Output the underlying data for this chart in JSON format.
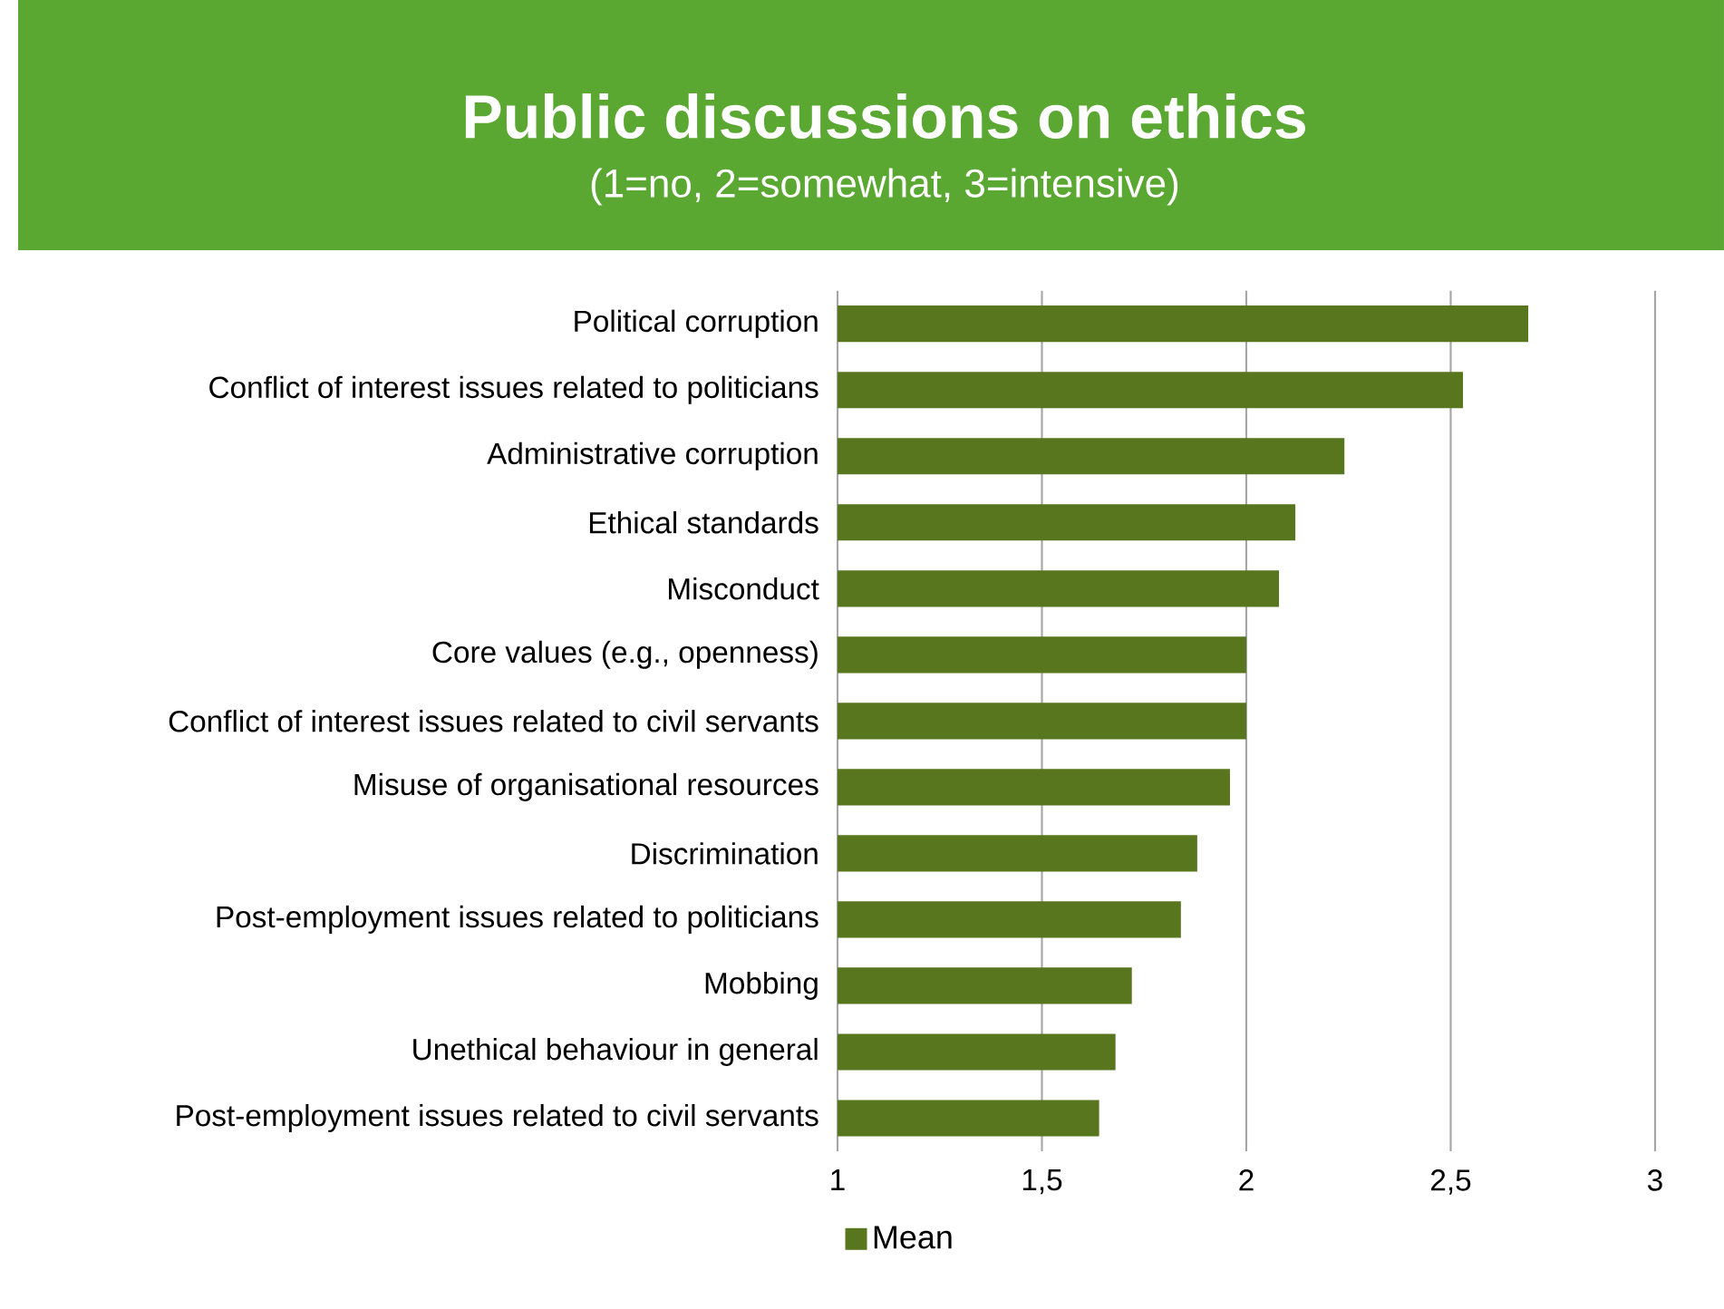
{
  "chart_data": {
    "type": "bar",
    "orientation": "horizontal",
    "title": "Public discussions on ethics",
    "subtitle": "(1=no, 2=somewhat, 3=intensive)",
    "categories": [
      "Political corruption",
      "Conflict of interest issues related to politicians",
      "Administrative corruption",
      "Ethical standards",
      "Misconduct",
      "Core values (e.g., openness)",
      "Conflict of interest issues related to civil servants",
      "Misuse of organisational resources",
      "Discrimination",
      "Post-employment issues related to politicians",
      "Mobbing",
      "Unethical behaviour in general",
      "Post-employment issues related to civil servants"
    ],
    "series": [
      {
        "name": "Mean",
        "color": "#58761e",
        "values": [
          2.69,
          2.53,
          2.24,
          2.12,
          2.08,
          2.0,
          2.0,
          1.96,
          1.88,
          1.84,
          1.72,
          1.68,
          1.64
        ]
      }
    ],
    "xlim": [
      1,
      3
    ],
    "xticks": [
      1,
      {
        "value": 1.5,
        "label": "1,5"
      },
      2,
      {
        "value": 2.5,
        "label": "2,5"
      },
      3
    ],
    "grid": "x",
    "legend": "bottom"
  }
}
